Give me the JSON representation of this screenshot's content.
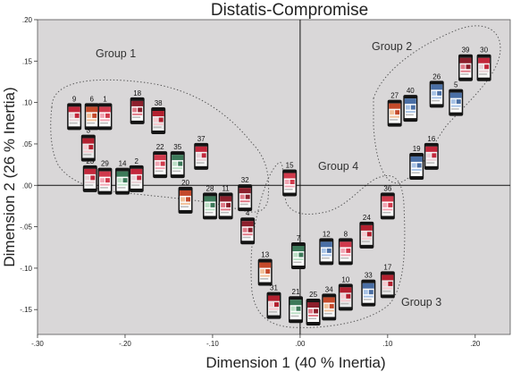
{
  "chart_data": {
    "type": "scatter",
    "title": "Distatis-Compromise",
    "xlabel": "Dimension 1 (40 % Inertia)",
    "ylabel": "Dimension 2 (26 % Inertia)",
    "xlim": [
      -0.3,
      0.24
    ],
    "ylim": [
      -0.18,
      0.2
    ],
    "xticks": [
      -0.3,
      -0.2,
      -0.1,
      0.0,
      0.1,
      0.2
    ],
    "xtick_labels": [
      "-.30",
      "-.20",
      "-.10",
      ".00",
      ".10",
      ".20"
    ],
    "yticks": [
      -0.15,
      -0.1,
      -0.05,
      0.0,
      0.05,
      0.1,
      0.15,
      0.2
    ],
    "ytick_labels": [
      "-.15",
      "-.10",
      "-.05",
      ".00",
      ".05",
      ".10",
      ".15",
      ".20"
    ],
    "grid": false,
    "background": "#d9d7d8",
    "points": [
      {
        "label": "1",
        "x": -0.223,
        "y": 0.083
      },
      {
        "label": "2",
        "x": -0.187,
        "y": 0.008
      },
      {
        "label": "3",
        "x": -0.242,
        "y": 0.045
      },
      {
        "label": "4",
        "x": -0.06,
        "y": -0.055
      },
      {
        "label": "5",
        "x": 0.178,
        "y": 0.1
      },
      {
        "label": "6",
        "x": -0.238,
        "y": 0.083
      },
      {
        "label": "7",
        "x": -0.002,
        "y": -0.085
      },
      {
        "label": "8",
        "x": 0.052,
        "y": -0.08
      },
      {
        "label": "9",
        "x": -0.258,
        "y": 0.083
      },
      {
        "label": "10",
        "x": 0.052,
        "y": -0.135
      },
      {
        "label": "11",
        "x": -0.085,
        "y": -0.025
      },
      {
        "label": "12",
        "x": 0.03,
        "y": -0.08
      },
      {
        "label": "13",
        "x": -0.04,
        "y": -0.105
      },
      {
        "label": "14",
        "x": -0.203,
        "y": 0.005
      },
      {
        "label": "15",
        "x": -0.012,
        "y": 0.003
      },
      {
        "label": "16",
        "x": 0.15,
        "y": 0.035
      },
      {
        "label": "17",
        "x": 0.1,
        "y": -0.12
      },
      {
        "label": "18",
        "x": -0.186,
        "y": 0.09
      },
      {
        "label": "19",
        "x": 0.133,
        "y": 0.023
      },
      {
        "label": "20",
        "x": -0.131,
        "y": -0.018
      },
      {
        "label": "21",
        "x": -0.005,
        "y": -0.15
      },
      {
        "label": "22",
        "x": -0.16,
        "y": 0.025
      },
      {
        "label": "23",
        "x": -0.24,
        "y": 0.008
      },
      {
        "label": "24",
        "x": 0.076,
        "y": -0.06
      },
      {
        "label": "25",
        "x": 0.015,
        "y": -0.153
      },
      {
        "label": "26",
        "x": 0.156,
        "y": 0.11
      },
      {
        "label": "27",
        "x": 0.108,
        "y": 0.087
      },
      {
        "label": "28",
        "x": -0.103,
        "y": -0.025
      },
      {
        "label": "29",
        "x": -0.223,
        "y": 0.005
      },
      {
        "label": "30",
        "x": 0.21,
        "y": 0.142
      },
      {
        "label": "31",
        "x": -0.03,
        "y": -0.145
      },
      {
        "label": "32",
        "x": -0.063,
        "y": -0.015
      },
      {
        "label": "33",
        "x": 0.078,
        "y": -0.13
      },
      {
        "label": "34",
        "x": 0.033,
        "y": -0.147
      },
      {
        "label": "35",
        "x": -0.14,
        "y": 0.025
      },
      {
        "label": "36",
        "x": 0.1,
        "y": -0.025
      },
      {
        "label": "37",
        "x": -0.113,
        "y": 0.035
      },
      {
        "label": "38",
        "x": -0.162,
        "y": 0.078
      },
      {
        "label": "39",
        "x": 0.189,
        "y": 0.142
      },
      {
        "label": "40",
        "x": 0.126,
        "y": 0.093
      }
    ],
    "groups": [
      {
        "label": "Group 1"
      },
      {
        "label": "Group 2"
      },
      {
        "label": "Group 3"
      },
      {
        "label": "Group 4"
      }
    ]
  }
}
